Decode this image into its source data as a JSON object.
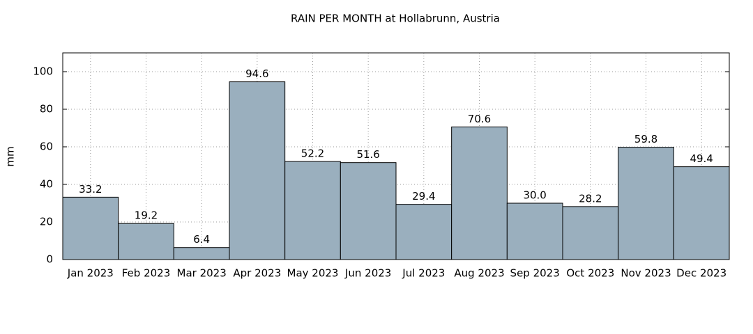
{
  "chart_data": {
    "type": "bar",
    "title": "RAIN PER MONTH at Hollabrunn, Austria",
    "y_label": "mm",
    "categories": [
      "Jan 2023",
      "Feb 2023",
      "Mar 2023",
      "Apr 2023",
      "May 2023",
      "Jun 2023",
      "Jul 2023",
      "Aug 2023",
      "Sep 2023",
      "Oct 2023",
      "Nov 2023",
      "Dec 2023"
    ],
    "values": [
      33.2,
      19.2,
      6.4,
      94.6,
      52.2,
      51.6,
      29.4,
      70.6,
      30.0,
      28.2,
      59.8,
      49.4
    ],
    "value_labels": [
      "33.2",
      "19.2",
      "6.4",
      "94.6",
      "52.2",
      "51.6",
      "29.4",
      "70.6",
      "30.0",
      "28.2",
      "59.8",
      "49.4"
    ],
    "color": "#9aafbe",
    "ylim": [
      0,
      110
    ],
    "yticks": [
      0,
      20,
      40,
      60,
      80,
      100
    ],
    "grid": true
  }
}
